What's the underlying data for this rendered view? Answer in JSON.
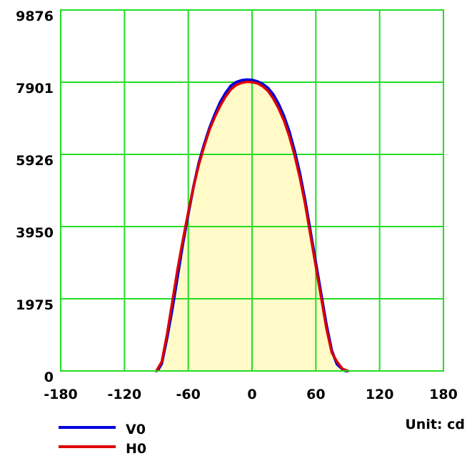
{
  "chart_data": {
    "type": "line",
    "title": "",
    "xlabel": "",
    "ylabel": "",
    "unit_label": "Unit: cd",
    "xlim": [
      -180,
      180
    ],
    "ylim": [
      0,
      9876
    ],
    "x_ticks": [
      "-180",
      "-120",
      "-60",
      "0",
      "60",
      "120",
      "180"
    ],
    "y_ticks": [
      "0",
      "1975",
      "3950",
      "5926",
      "7901",
      "9876"
    ],
    "grid": true,
    "grid_color": "#22dd22",
    "fill_color": "#fffac8",
    "series": [
      {
        "name": "V0",
        "color": "#0000dd",
        "x": [
          -90,
          -88,
          -85,
          -80,
          -75,
          -70,
          -65,
          -60,
          -55,
          -50,
          -45,
          -40,
          -35,
          -30,
          -25,
          -20,
          -15,
          -10,
          -5,
          0,
          5,
          10,
          15,
          20,
          25,
          30,
          35,
          40,
          45,
          50,
          55,
          60,
          65,
          70,
          75,
          80,
          85,
          88,
          90
        ],
        "values": [
          0,
          50,
          200,
          900,
          1700,
          2600,
          3500,
          4300,
          5050,
          5700,
          6200,
          6650,
          7020,
          7350,
          7600,
          7800,
          7900,
          7950,
          7970,
          7960,
          7920,
          7850,
          7740,
          7560,
          7300,
          6970,
          6550,
          6020,
          5400,
          4650,
          3800,
          2950,
          2100,
          1250,
          550,
          180,
          50,
          0,
          0
        ]
      },
      {
        "name": "H0",
        "color": "#dd0000",
        "x": [
          -90,
          -85,
          -80,
          -75,
          -70,
          -65,
          -60,
          -55,
          -50,
          -45,
          -40,
          -35,
          -30,
          -25,
          -20,
          -15,
          -10,
          -5,
          0,
          5,
          10,
          15,
          20,
          25,
          30,
          35,
          40,
          45,
          50,
          55,
          60,
          65,
          70,
          75,
          80,
          85,
          90
        ],
        "values": [
          0,
          250,
          1000,
          1900,
          2800,
          3600,
          4350,
          5050,
          5650,
          6150,
          6600,
          6950,
          7250,
          7500,
          7700,
          7820,
          7880,
          7910,
          7900,
          7870,
          7790,
          7660,
          7450,
          7180,
          6850,
          6420,
          5900,
          5280,
          4550,
          3700,
          2850,
          2000,
          1150,
          500,
          250,
          60,
          0
        ]
      }
    ]
  }
}
